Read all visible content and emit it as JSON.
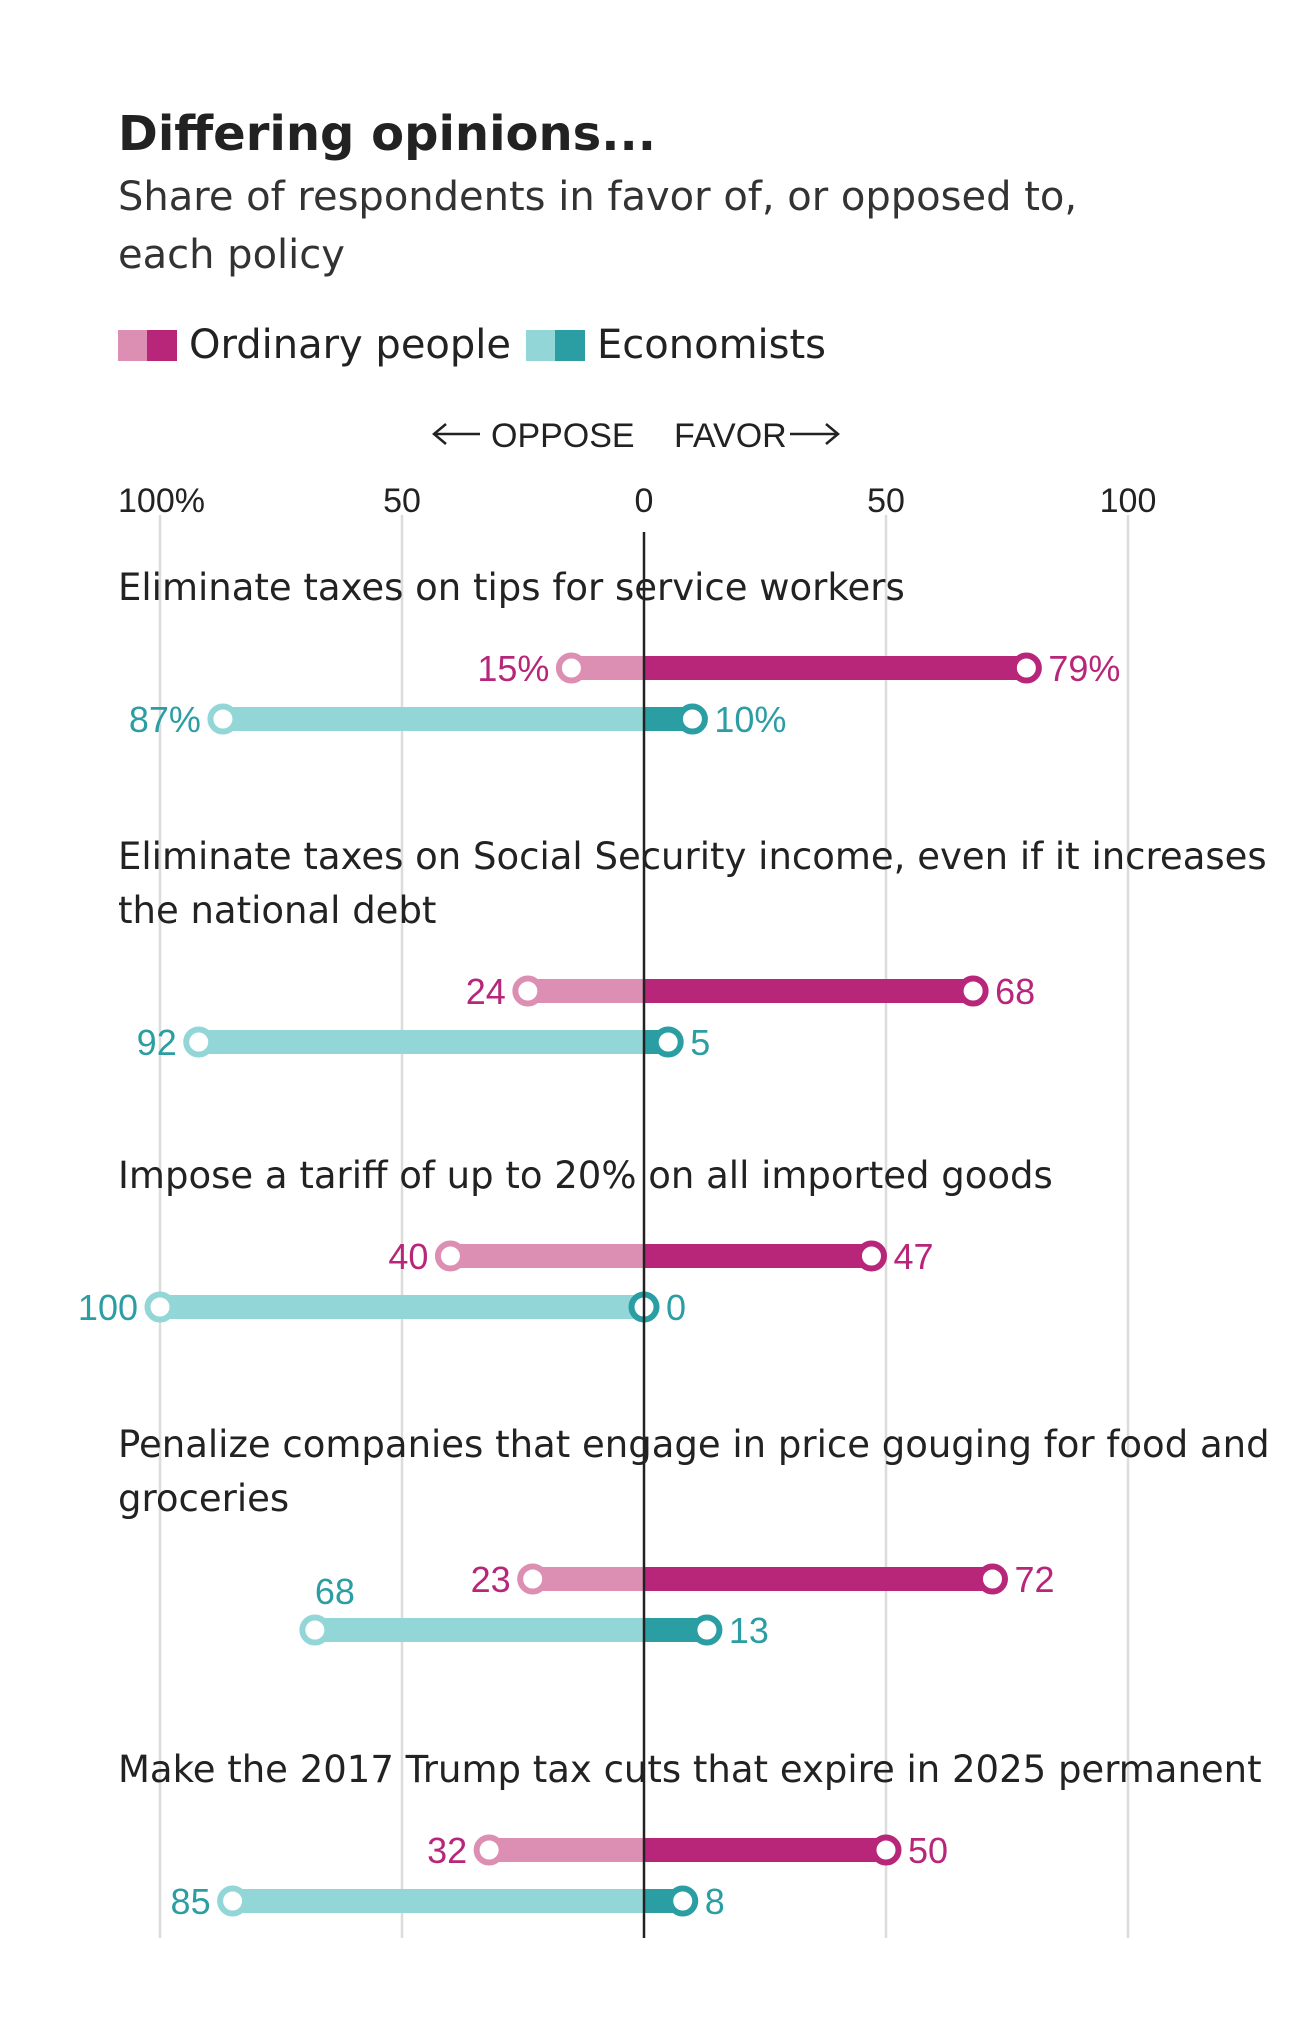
{
  "chart_data": {
    "type": "dumbbell",
    "title": "Differing opinions...",
    "subtitle_lines": [
      "Share of respondents in favor of, or opposed to,",
      "each policy"
    ],
    "legend": [
      {
        "name": "Ordinary people",
        "light": "#dd8fb3",
        "dark": "#b8267a"
      },
      {
        "name": "Economists",
        "light": "#93d6d8",
        "dark": "#2b9ea3"
      }
    ],
    "axis": {
      "oppose_label": "OPPOSE",
      "favor_label": "FAVOR",
      "ticks": [
        {
          "value": -100,
          "label": "100%"
        },
        {
          "value": -50,
          "label": "50"
        },
        {
          "value": 0,
          "label": "0"
        },
        {
          "value": 50,
          "label": "50"
        },
        {
          "value": 100,
          "label": "100"
        }
      ],
      "range": [
        -100,
        100
      ]
    },
    "colors": {
      "people_light": "#dd8fb3",
      "people_dark": "#b8267a",
      "econ_light": "#93d6d8",
      "econ_dark": "#2b9ea3",
      "people_text": "#b8267a",
      "econ_text": "#2b9ea3",
      "grid": "#dcdcdc",
      "zero_line": "#222222"
    },
    "policies": [
      {
        "label_lines": [
          "Eliminate taxes on tips for service workers"
        ],
        "people": {
          "oppose": 15,
          "favor": 79,
          "oppose_label": "15%",
          "favor_label": "79%"
        },
        "economists": {
          "oppose": 87,
          "favor": 10,
          "oppose_label": "87%",
          "favor_label": "10%"
        }
      },
      {
        "label_lines": [
          "Eliminate taxes on Social Security income, even if it increases",
          "the national debt"
        ],
        "people": {
          "oppose": 24,
          "favor": 68,
          "oppose_label": "24",
          "favor_label": "68"
        },
        "economists": {
          "oppose": 92,
          "favor": 5,
          "oppose_label": "92",
          "favor_label": "5"
        }
      },
      {
        "label_lines": [
          "Impose a tariff of up to 20% on all imported goods"
        ],
        "people": {
          "oppose": 40,
          "favor": 47,
          "oppose_label": "40",
          "favor_label": "47"
        },
        "economists": {
          "oppose": 100,
          "favor": 0,
          "oppose_label": "100",
          "favor_label": "0"
        }
      },
      {
        "label_lines": [
          "Penalize companies that engage in price gouging for food and",
          "groceries"
        ],
        "people": {
          "oppose": 23,
          "favor": 72,
          "oppose_label": "23",
          "favor_label": "72"
        },
        "economists": {
          "oppose": 68,
          "favor": 13,
          "oppose_label": "68",
          "favor_label": "13"
        }
      },
      {
        "label_lines": [
          "Make the 2017 Trump tax cuts that expire in 2025 permanent"
        ],
        "people": {
          "oppose": 32,
          "favor": 50,
          "oppose_label": "32",
          "favor_label": "50"
        },
        "economists": {
          "oppose": 85,
          "favor": 8,
          "oppose_label": "85",
          "favor_label": "8"
        }
      }
    ]
  }
}
